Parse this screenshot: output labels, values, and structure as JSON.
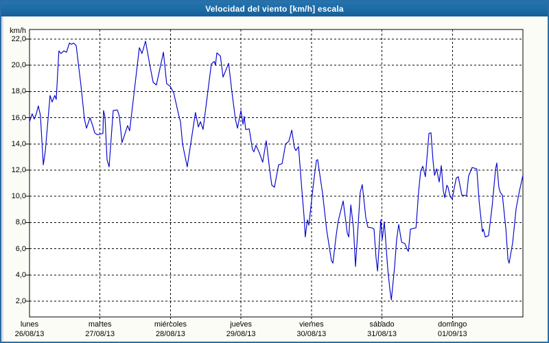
{
  "window": {
    "title": "Velocidad del viento [km/h] escala",
    "title_bar_color": "#1d6aa4",
    "border_color": "#2a6ea7",
    "content_bg": "#fbfcf5",
    "plot_bg": "#ffffff"
  },
  "chart_data": {
    "type": "line",
    "title": "Velocidad del viento [km/h] escala",
    "xlabel": "",
    "ylabel": "km/h",
    "ylim": [
      0.8,
      22.733
    ],
    "y_tick_values": [
      22,
      20,
      18,
      16,
      14,
      12,
      10,
      8,
      6,
      4,
      2
    ],
    "y_tick_labels": [
      "22,0",
      "20,0",
      "18,0",
      "16,0",
      "14,0",
      "12,0",
      "10,0",
      "8,0",
      "6,0",
      "4,0",
      "2,0"
    ],
    "grid": "dashed",
    "legend": "none",
    "x_hours_total": 168,
    "x_days": [
      {
        "name": "lunes",
        "date": "26/08/13"
      },
      {
        "name": "martes",
        "date": "27/08/13"
      },
      {
        "name": "miércoles",
        "date": "28/08/13"
      },
      {
        "name": "jueves",
        "date": "29/08/13"
      },
      {
        "name": "viernes",
        "date": "30/08/13"
      },
      {
        "name": "sábado",
        "date": "31/08/13"
      },
      {
        "name": "domingo",
        "date": "01/09/13"
      }
    ],
    "series": [
      {
        "name": "Velocidad del viento",
        "color": "#0000cc",
        "points": [
          [
            0,
            15.7
          ],
          [
            0.9,
            16.3
          ],
          [
            1.6,
            15.9
          ],
          [
            2.3,
            16.3
          ],
          [
            3,
            16.9
          ],
          [
            3.7,
            16.2
          ],
          [
            4.7,
            12.4
          ],
          [
            5.4,
            13.5
          ],
          [
            7,
            17.7
          ],
          [
            7.7,
            17.2
          ],
          [
            8.6,
            17.7
          ],
          [
            9.1,
            17.4
          ],
          [
            10,
            21.1
          ],
          [
            10.7,
            20.9
          ],
          [
            11.7,
            21.1
          ],
          [
            12.6,
            21.0
          ],
          [
            13.6,
            21.7
          ],
          [
            14.3,
            21.6
          ],
          [
            15,
            21.7
          ],
          [
            15.9,
            21.5
          ],
          [
            16.8,
            19.8
          ],
          [
            17.5,
            18.5
          ],
          [
            18.2,
            17.0
          ],
          [
            18.7,
            15.9
          ],
          [
            19.4,
            15.2
          ],
          [
            20.6,
            16.0
          ],
          [
            21.5,
            15.4
          ],
          [
            22.2,
            14.85
          ],
          [
            23.1,
            14.7
          ],
          [
            25,
            14.8
          ],
          [
            25.2,
            16.55
          ],
          [
            25.7,
            16.05
          ],
          [
            26.4,
            12.8
          ],
          [
            27.1,
            12.25
          ],
          [
            28.5,
            16.55
          ],
          [
            29.9,
            16.6
          ],
          [
            30.6,
            16.1
          ],
          [
            31.5,
            14.1
          ],
          [
            33.4,
            15.4
          ],
          [
            34.1,
            15.0
          ],
          [
            37.4,
            21.35
          ],
          [
            38.3,
            20.9
          ],
          [
            39.5,
            21.85
          ],
          [
            40.9,
            20.1
          ],
          [
            42.1,
            18.7
          ],
          [
            43.2,
            18.5
          ],
          [
            45.6,
            21.0
          ],
          [
            46.7,
            18.6
          ],
          [
            47.9,
            18.4
          ],
          [
            49.1,
            17.9
          ],
          [
            50.7,
            16.3
          ],
          [
            51.4,
            15.7
          ],
          [
            52.1,
            14.0
          ],
          [
            53.7,
            12.25
          ],
          [
            56.5,
            16.4
          ],
          [
            57.5,
            15.3
          ],
          [
            58.2,
            15.7
          ],
          [
            59.1,
            15.1
          ],
          [
            61.9,
            20.1
          ],
          [
            62.9,
            20.3
          ],
          [
            63.3,
            20.0
          ],
          [
            63.8,
            20.95
          ],
          [
            65,
            20.7
          ],
          [
            65.9,
            19.1
          ],
          [
            67.8,
            20.15
          ],
          [
            68.9,
            18.0
          ],
          [
            70.1,
            15.9
          ],
          [
            70.8,
            15.2
          ],
          [
            72,
            16.55
          ],
          [
            72.7,
            15.5
          ],
          [
            73.1,
            16.1
          ],
          [
            73.6,
            15.1
          ],
          [
            74.8,
            15.15
          ],
          [
            75.9,
            13.6
          ],
          [
            76.4,
            13.4
          ],
          [
            77.1,
            13.9
          ],
          [
            78.3,
            13.3
          ],
          [
            79.4,
            12.6
          ],
          [
            80.6,
            14.25
          ],
          [
            81.8,
            12.0
          ],
          [
            82.5,
            10.85
          ],
          [
            83.4,
            10.7
          ],
          [
            84.8,
            12.4
          ],
          [
            86,
            12.5
          ],
          [
            87.2,
            14.0
          ],
          [
            88.3,
            14.2
          ],
          [
            89.3,
            15.05
          ],
          [
            90.2,
            13.7
          ],
          [
            90.7,
            13.5
          ],
          [
            91.6,
            13.8
          ],
          [
            92.8,
            10.3
          ],
          [
            93.5,
            8.4
          ],
          [
            93.9,
            6.9
          ],
          [
            94.6,
            8.2
          ],
          [
            95.1,
            7.8
          ],
          [
            96.7,
            11.0
          ],
          [
            97.7,
            12.75
          ],
          [
            98.1,
            12.8
          ],
          [
            99.8,
            10.2
          ],
          [
            101.2,
            7.4
          ],
          [
            102.8,
            5.1
          ],
          [
            103.3,
            4.9
          ],
          [
            104.4,
            7.0
          ],
          [
            105.1,
            8.1
          ],
          [
            106.8,
            9.65
          ],
          [
            108.2,
            7.2
          ],
          [
            108.7,
            6.9
          ],
          [
            109.4,
            9.35
          ],
          [
            110.3,
            7.6
          ],
          [
            111,
            4.65
          ],
          [
            112.6,
            10.3
          ],
          [
            113.3,
            10.9
          ],
          [
            114.5,
            8.4
          ],
          [
            115.2,
            7.65
          ],
          [
            116.6,
            7.6
          ],
          [
            117.3,
            7.5
          ],
          [
            118,
            5.3
          ],
          [
            118.5,
            4.3
          ],
          [
            119.6,
            8.2
          ],
          [
            120.1,
            6.7
          ],
          [
            120.8,
            8.05
          ],
          [
            122,
            4.4
          ],
          [
            122.7,
            2.9
          ],
          [
            123.2,
            2.1
          ],
          [
            124.3,
            4.6
          ],
          [
            125,
            6.7
          ],
          [
            125.7,
            7.85
          ],
          [
            126.7,
            6.5
          ],
          [
            127.8,
            6.4
          ],
          [
            128.5,
            6.0
          ],
          [
            129,
            5.8
          ],
          [
            129.7,
            7.5
          ],
          [
            131.6,
            7.6
          ],
          [
            132.5,
            10.4
          ],
          [
            133.2,
            11.95
          ],
          [
            133.9,
            12.3
          ],
          [
            134.8,
            11.5
          ],
          [
            136,
            14.8
          ],
          [
            136.7,
            14.85
          ],
          [
            137.4,
            12.7
          ],
          [
            137.9,
            11.6
          ],
          [
            138.6,
            12.1
          ],
          [
            139.5,
            11.1
          ],
          [
            140.2,
            12.35
          ],
          [
            140.9,
            10.4
          ],
          [
            141.4,
            9.9
          ],
          [
            142.1,
            10.85
          ],
          [
            142.5,
            10.7
          ],
          [
            143.2,
            10.0
          ],
          [
            143.9,
            9.8
          ],
          [
            145.3,
            11.4
          ],
          [
            146,
            11.5
          ],
          [
            147.2,
            10.1
          ],
          [
            148.8,
            10.05
          ],
          [
            149.5,
            11.55
          ],
          [
            150.7,
            12.2
          ],
          [
            152.3,
            12.1
          ],
          [
            153.1,
            9.6
          ],
          [
            154.2,
            7.3
          ],
          [
            154.5,
            7.5
          ],
          [
            155.2,
            6.9
          ],
          [
            156.3,
            7.0
          ],
          [
            157.5,
            9.2
          ],
          [
            158.7,
            12.1
          ],
          [
            159.1,
            12.55
          ],
          [
            159.8,
            10.7
          ],
          [
            160.3,
            10.3
          ],
          [
            161,
            10.1
          ],
          [
            162.2,
            7.5
          ],
          [
            162.9,
            5.2
          ],
          [
            163.3,
            4.9
          ],
          [
            164.5,
            6.45
          ],
          [
            165.7,
            9.1
          ],
          [
            166.8,
            10.4
          ],
          [
            168,
            11.6
          ]
        ]
      }
    ]
  }
}
